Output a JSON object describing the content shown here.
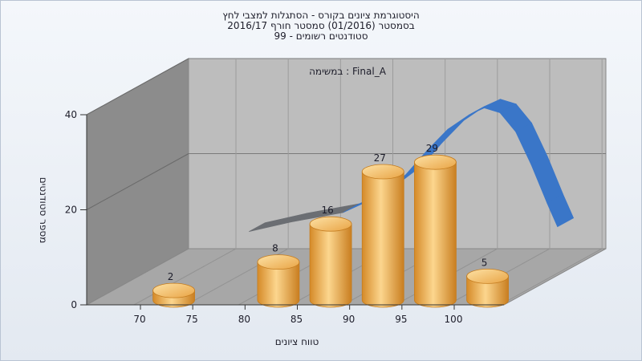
{
  "chart_data": {
    "type": "bar",
    "title_lines": [
      "היסטוגרמת ציונים בקורס - הסתגלות למצבי לחץ",
      "בסמסטר  (01/2016)  סמסטר חורף 2016/17",
      "סטודנטים רשומים - 99"
    ],
    "inner_label": "במשימה : Final_A",
    "xlabel": "טווח ציונים",
    "ylabel": "מספר סטודנטים",
    "x_ticks": [
      70,
      75,
      80,
      85,
      90,
      95,
      100
    ],
    "y_ticks": [
      0,
      20,
      40
    ],
    "ylim": [
      0,
      40
    ],
    "bins": [
      {
        "x": 72.5,
        "value": 2,
        "label": "2"
      },
      {
        "x": 82.5,
        "value": 8,
        "label": "8"
      },
      {
        "x": 87.5,
        "value": 16,
        "label": "16"
      },
      {
        "x": 92.5,
        "value": 27,
        "label": "27"
      },
      {
        "x": 97.5,
        "value": 29,
        "label": "29"
      },
      {
        "x": 102.5,
        "value": 5,
        "label": "5"
      }
    ],
    "curve": {
      "x": [
        76,
        80,
        85,
        88,
        91,
        93,
        95,
        97,
        98.5,
        100,
        101.5,
        103,
        104.5,
        105.5
      ],
      "y": [
        9,
        11,
        13,
        16,
        21,
        26,
        30.5,
        33.5,
        35,
        34,
        30,
        23,
        15,
        10
      ]
    },
    "colors": {
      "bar_light": "#fbd488",
      "bar_mid": "#eba646",
      "bar_dark": "#c57d20",
      "curve_front": "#3a76c8",
      "curve_back": "#6b6e73",
      "back_wall": "#bdbdbd",
      "side_wall": "#8c8c8c",
      "floor": "#a7a7a7"
    }
  }
}
